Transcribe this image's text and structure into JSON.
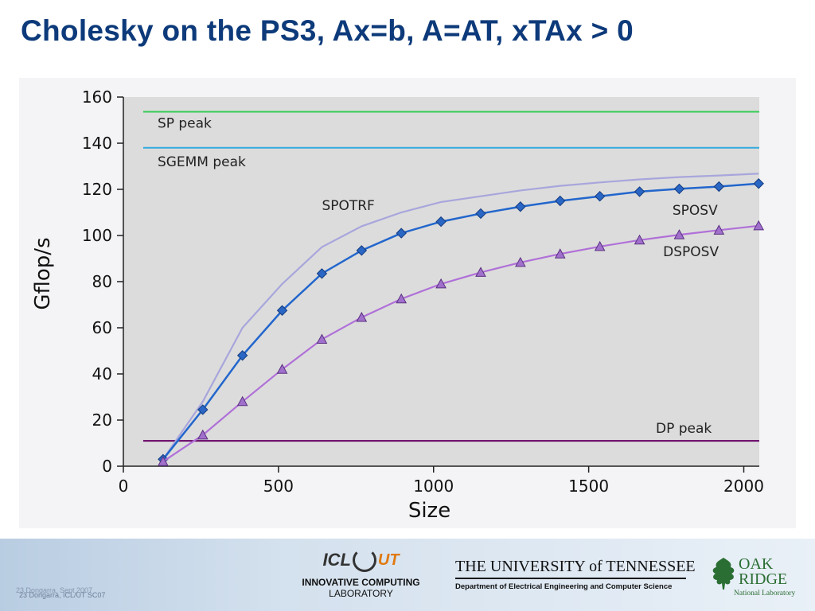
{
  "slide": {
    "title": "Cholesky on the PS3, Ax=b, A=AT, xTAx > 0"
  },
  "chart_data": {
    "type": "line",
    "xlabel": "Size",
    "ylabel": "Gflop/s",
    "xlim": [
      0,
      2050
    ],
    "ylim": [
      0,
      160
    ],
    "xticks": [
      0,
      500,
      1000,
      1500,
      2000
    ],
    "yticks": [
      0,
      20,
      40,
      60,
      80,
      100,
      120,
      140,
      160
    ],
    "grid": false,
    "reference_lines": [
      {
        "name": "SP peak",
        "y": 153.6,
        "x_start": 64,
        "color": "#33cc55"
      },
      {
        "name": "SGEMM peak",
        "y": 138,
        "x_start": 64,
        "color": "#33aadd"
      },
      {
        "name": "DP peak",
        "y": 11,
        "x_start": 64,
        "color": "#660066"
      }
    ],
    "series": [
      {
        "name": "SPOTRF",
        "marker": "none",
        "color": "#a8a6dc",
        "x": [
          128,
          256,
          384,
          512,
          640,
          768,
          896,
          1024,
          1152,
          1280,
          1408,
          1536,
          1664,
          1792,
          1920,
          2048
        ],
        "values": [
          3,
          28,
          60,
          79,
          95,
          104,
          110,
          114.5,
          117,
          119.5,
          121.5,
          123,
          124.3,
          125.3,
          126,
          126.8
        ]
      },
      {
        "name": "SPOSV",
        "marker": "diamond",
        "color": "#2266cc",
        "x": [
          128,
          256,
          384,
          512,
          640,
          768,
          896,
          1024,
          1152,
          1280,
          1408,
          1536,
          1664,
          1792,
          1920,
          2048
        ],
        "values": [
          3,
          24.5,
          48,
          67.5,
          83.5,
          93.5,
          101,
          106,
          109.5,
          112.5,
          115,
          117,
          119,
          120.2,
          121.2,
          122.5
        ]
      },
      {
        "name": "DSPOSV",
        "marker": "triangle",
        "color": "#b070d8",
        "x": [
          128,
          256,
          384,
          512,
          640,
          768,
          896,
          1024,
          1152,
          1280,
          1408,
          1536,
          1664,
          1792,
          1920,
          2048
        ],
        "values": [
          2,
          13.5,
          28,
          42,
          55,
          64.5,
          72.5,
          79,
          84,
          88.3,
          92,
          95.2,
          98,
          100.3,
          102.3,
          104.2
        ]
      }
    ]
  },
  "footer": {
    "note": "23 Dongarra, ICL/UT SC07",
    "note_shadow": "23 Dongarra, Sept 2007",
    "icl_mark": "ICL",
    "icl_ut": "UT",
    "icl_line1": "INNOVATIVE COMPUTING",
    "icl_line2": "LABORATORY",
    "utk_name": "THE UNIVERSITY of TENNESSEE",
    "utk_dept": "Department of Electrical Engineering and Computer Science",
    "ornl_oak": "OAK",
    "ornl_ridge": "RIDGE",
    "ornl_sub": "National Laboratory"
  }
}
